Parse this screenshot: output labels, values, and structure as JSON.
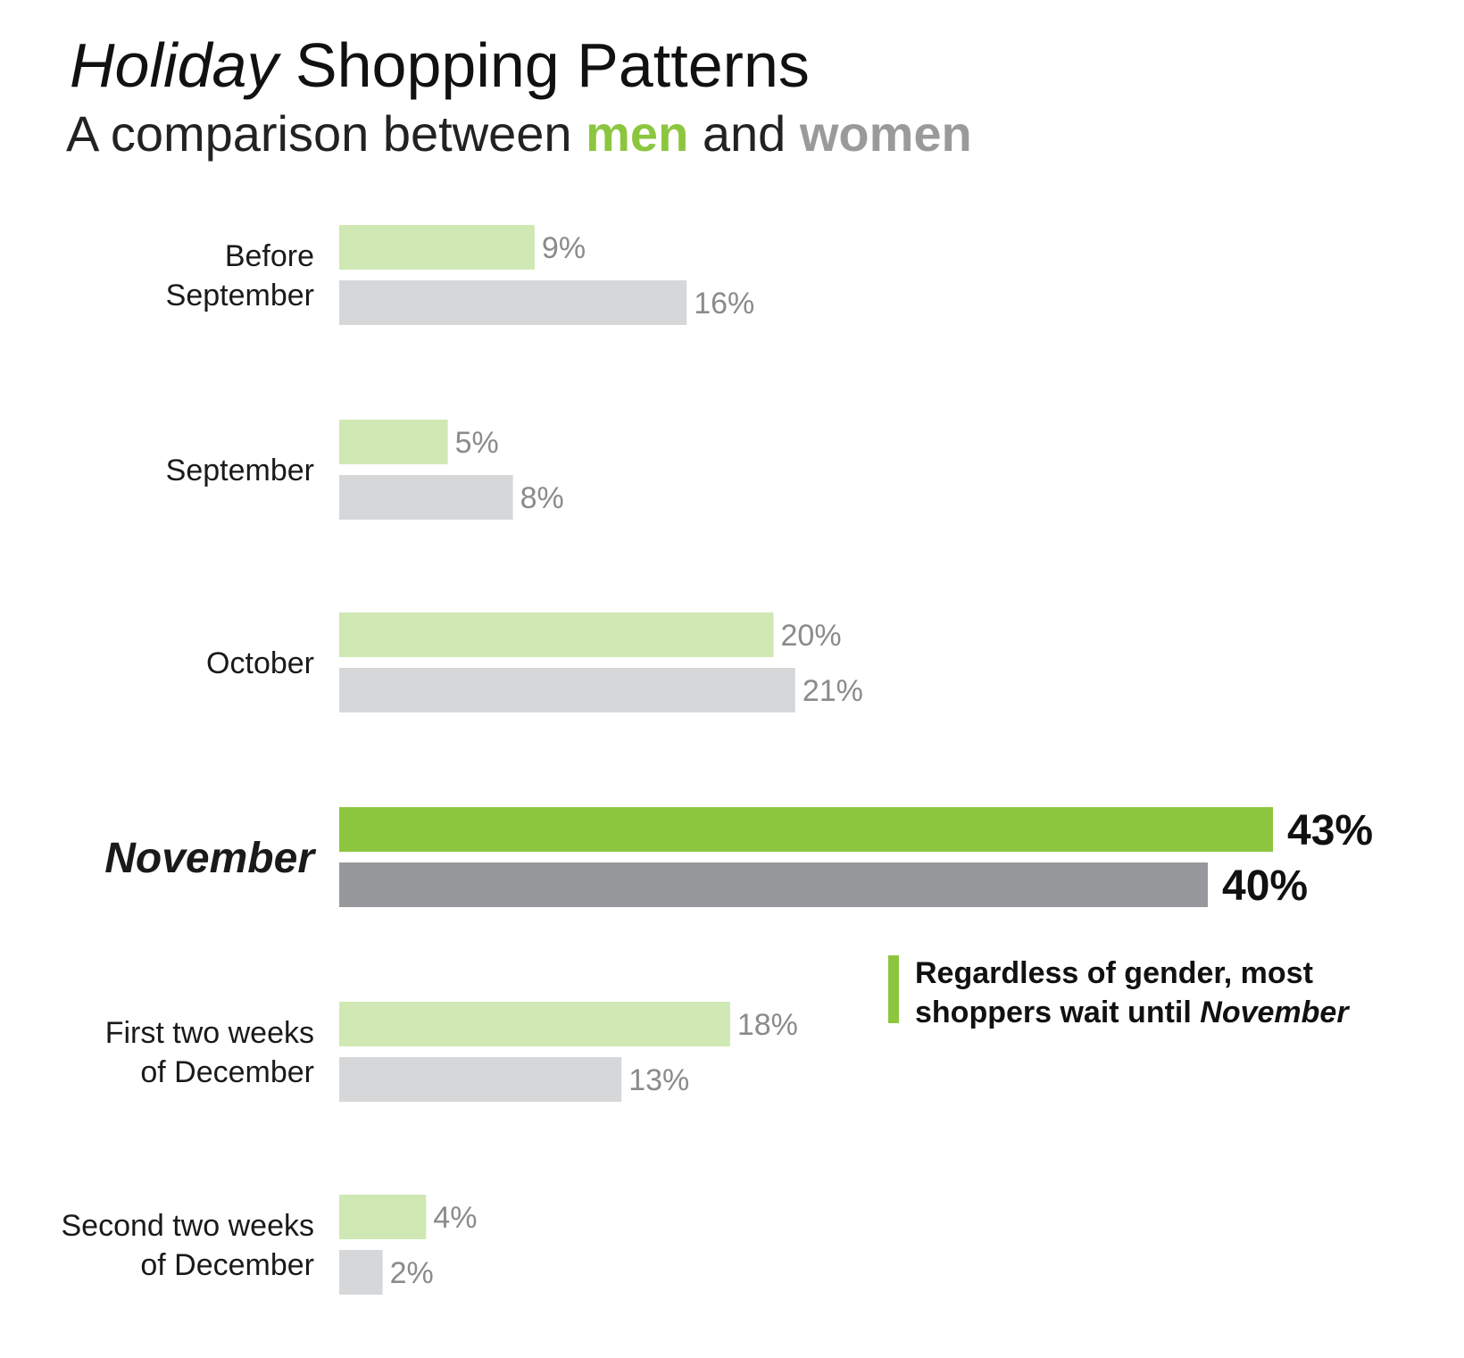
{
  "title": {
    "italic": "Holiday",
    "rest": "Shopping Patterns"
  },
  "subtitle": {
    "prefix": "A comparison between",
    "men": "men",
    "mid": "and",
    "women": "women"
  },
  "note": {
    "line1": "Regardless of gender, most",
    "line2_prefix": "shoppers wait until",
    "line2_emph": "November"
  },
  "colors": {
    "men": "#d0e8b4",
    "women": "#d6d7d8",
    "men_highlight": "#8cc63f",
    "women_highlight": "#97989b",
    "label": "#8b8b8b",
    "accent": "#8cc63f"
  },
  "chart_data": {
    "type": "bar",
    "orientation": "horizontal",
    "categories": [
      [
        "Before",
        "September"
      ],
      [
        "September"
      ],
      [
        "October"
      ],
      [
        "November"
      ],
      [
        "First two weeks",
        "of December"
      ],
      [
        "Second two weeks",
        "of December"
      ]
    ],
    "highlight_category": 3,
    "series": [
      {
        "name": "men",
        "values": [
          9,
          5,
          20,
          43,
          18,
          4
        ],
        "labels": [
          "9%",
          "5%",
          "20%",
          "43%",
          "18%",
          "4%"
        ]
      },
      {
        "name": "women",
        "values": [
          16,
          8,
          21,
          40,
          13,
          2
        ],
        "labels": [
          "16%",
          "8%",
          "21%",
          "40%",
          "13%",
          "2%"
        ]
      }
    ],
    "xlim": [
      0,
      43
    ],
    "grid": false,
    "axes_visible": false
  }
}
